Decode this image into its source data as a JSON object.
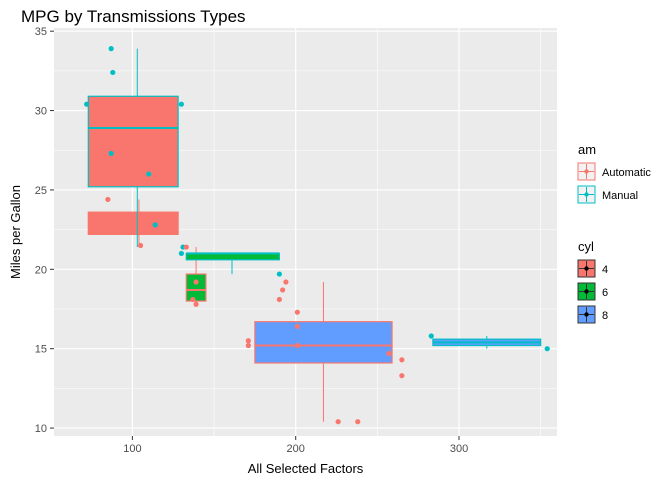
{
  "chart_data": {
    "type": "boxplot",
    "title": "MPG by Transmissions Types",
    "xlabel": "All Selected Factors",
    "ylabel": "Miles per Gallon",
    "xlim": [
      52,
      360
    ],
    "ylim": [
      9.5,
      35.2
    ],
    "x_ticks": [
      100,
      200,
      300
    ],
    "y_ticks": [
      10,
      15,
      20,
      25,
      30,
      35
    ],
    "panel_background": "#ebebeb",
    "grid_color": "#ffffff",
    "legend_am": {
      "title": "am",
      "items": [
        {
          "label": "Automatic",
          "color": "#F8766D"
        },
        {
          "label": "Manual",
          "color": "#00BFC4"
        }
      ]
    },
    "legend_cyl": {
      "title": "cyl",
      "items": [
        {
          "label": "4",
          "color": "#F8766D"
        },
        {
          "label": "6",
          "color": "#00BA38"
        },
        {
          "label": "8",
          "color": "#619CFF"
        }
      ]
    },
    "boxes": [
      {
        "cyl": "4",
        "am": "Automatic",
        "x0": 73,
        "x1": 128,
        "q1": 22.2,
        "median": 22.8,
        "q3": 23.6,
        "wlo": 21.5,
        "whi": 24.4,
        "whisker_x": 104
      },
      {
        "cyl": "4",
        "am": "Manual",
        "x0": 73,
        "x1": 128,
        "q1": 25.2,
        "median": 28.9,
        "q3": 30.9,
        "wlo": 21.4,
        "whi": 33.9,
        "whisker_x": 103
      },
      {
        "cyl": "6",
        "am": "Automatic",
        "x0": 133,
        "x1": 145,
        "q1": 18.0,
        "median": 18.7,
        "q3": 19.7,
        "wlo": 17.8,
        "whi": 21.4,
        "whisker_x": 139
      },
      {
        "cyl": "6",
        "am": "Manual",
        "x0": 133,
        "x1": 190,
        "q1": 20.6,
        "median": 21.0,
        "q3": 21.0,
        "wlo": 19.7,
        "whi": 21.0,
        "whisker_x": 161
      },
      {
        "cyl": "8",
        "am": "Automatic",
        "x0": 175,
        "x1": 259,
        "q1": 14.1,
        "median": 15.2,
        "q3": 16.7,
        "wlo": 10.4,
        "whi": 19.2,
        "whisker_x": 217
      },
      {
        "cyl": "8",
        "am": "Manual",
        "x0": 284,
        "x1": 350,
        "q1": 15.2,
        "median": 15.4,
        "q3": 15.6,
        "wlo": 15.0,
        "whi": 15.8,
        "whisker_x": 317
      }
    ],
    "points": [
      {
        "x": 87,
        "y": 33.9,
        "am": "Manual"
      },
      {
        "x": 88,
        "y": 32.4,
        "am": "Manual"
      },
      {
        "x": 72,
        "y": 30.4,
        "am": "Manual"
      },
      {
        "x": 130,
        "y": 30.4,
        "am": "Manual"
      },
      {
        "x": 87,
        "y": 27.3,
        "am": "Manual"
      },
      {
        "x": 110,
        "y": 26.0,
        "am": "Manual"
      },
      {
        "x": 85,
        "y": 24.4,
        "am": "Automatic"
      },
      {
        "x": 114,
        "y": 22.8,
        "am": "Manual"
      },
      {
        "x": 123,
        "y": 22.8,
        "am": "Automatic"
      },
      {
        "x": 105,
        "y": 21.5,
        "am": "Automatic"
      },
      {
        "x": 131,
        "y": 21.4,
        "am": "Manual"
      },
      {
        "x": 133,
        "y": 21.4,
        "am": "Automatic"
      },
      {
        "x": 130,
        "y": 21.0,
        "am": "Manual"
      },
      {
        "x": 139,
        "y": 19.2,
        "am": "Automatic"
      },
      {
        "x": 137,
        "y": 18.1,
        "am": "Automatic"
      },
      {
        "x": 139,
        "y": 17.8,
        "am": "Automatic"
      },
      {
        "x": 190,
        "y": 19.7,
        "am": "Manual"
      },
      {
        "x": 194,
        "y": 19.2,
        "am": "Automatic"
      },
      {
        "x": 192,
        "y": 18.7,
        "am": "Automatic"
      },
      {
        "x": 190,
        "y": 18.1,
        "am": "Automatic"
      },
      {
        "x": 201,
        "y": 17.3,
        "am": "Automatic"
      },
      {
        "x": 201,
        "y": 16.4,
        "am": "Automatic"
      },
      {
        "x": 171,
        "y": 15.5,
        "am": "Automatic"
      },
      {
        "x": 171,
        "y": 15.2,
        "am": "Automatic"
      },
      {
        "x": 201,
        "y": 15.2,
        "am": "Automatic"
      },
      {
        "x": 257,
        "y": 14.7,
        "am": "Automatic"
      },
      {
        "x": 265,
        "y": 14.3,
        "am": "Automatic"
      },
      {
        "x": 265,
        "y": 13.3,
        "am": "Automatic"
      },
      {
        "x": 226,
        "y": 10.4,
        "am": "Automatic"
      },
      {
        "x": 238,
        "y": 10.4,
        "am": "Automatic"
      },
      {
        "x": 283,
        "y": 15.8,
        "am": "Manual"
      },
      {
        "x": 354,
        "y": 15.0,
        "am": "Manual"
      }
    ]
  }
}
